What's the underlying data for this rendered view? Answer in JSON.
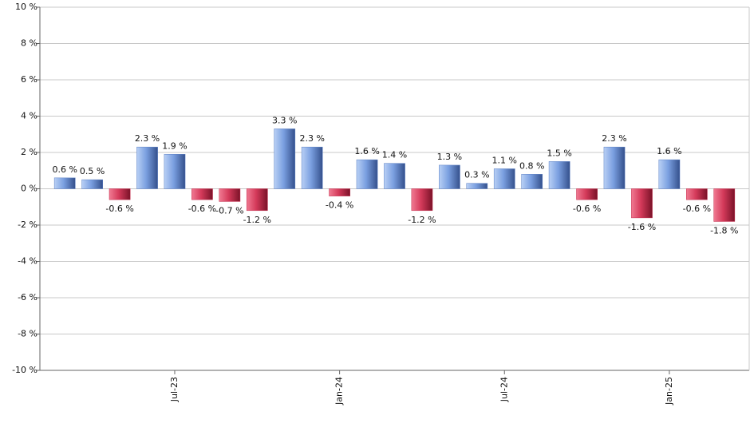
{
  "chart_data": {
    "type": "bar",
    "categories": [
      null,
      null,
      null,
      null,
      "Jul-23",
      null,
      null,
      null,
      null,
      null,
      "Jan-24",
      null,
      null,
      null,
      null,
      null,
      "Jul-24",
      null,
      null,
      null,
      null,
      null,
      "Jan-25",
      null,
      null
    ],
    "values": [
      0.6,
      0.5,
      -0.6,
      2.3,
      1.9,
      -0.6,
      -0.7,
      -1.2,
      3.3,
      2.3,
      -0.4,
      1.6,
      1.4,
      -1.2,
      1.3,
      0.3,
      1.1,
      0.8,
      1.5,
      -0.6,
      2.3,
      -1.6,
      1.6,
      -0.6,
      -1.8
    ],
    "value_labels": [
      "0.6 %",
      "0.5 %",
      "-0.6 %",
      "2.3 %",
      "1.9 %",
      "-0.6 %",
      "-0.7 %",
      "-1.2 %",
      "3.3 %",
      "2.3 %",
      "-0.4 %",
      "1.6 %",
      "1.4 %",
      "-1.2 %",
      "1.3 %",
      "0.3 %",
      "1.1 %",
      "0.8 %",
      "1.5 %",
      "-0.6 %",
      "2.3 %",
      "-1.6 %",
      "1.6 %",
      "-0.6 %",
      "-1.8 %"
    ],
    "positive_color": "#5a7fc4",
    "negative_color": "#c42a4a",
    "ylim": [
      -10,
      10
    ],
    "yticks": [
      {
        "value": -10,
        "label": "-10 %"
      },
      {
        "value": -8,
        "label": "-8 %"
      },
      {
        "value": -6,
        "label": "-6 %"
      },
      {
        "value": -4,
        "label": "-4 %"
      },
      {
        "value": -2,
        "label": "-2 %"
      },
      {
        "value": 0,
        "label": "0 %"
      },
      {
        "value": 2,
        "label": "2 %"
      },
      {
        "value": 4,
        "label": "4 %"
      },
      {
        "value": 6,
        "label": "6 %"
      },
      {
        "value": 8,
        "label": "8 %"
      },
      {
        "value": 10,
        "label": "10 %"
      }
    ],
    "grid": true
  }
}
